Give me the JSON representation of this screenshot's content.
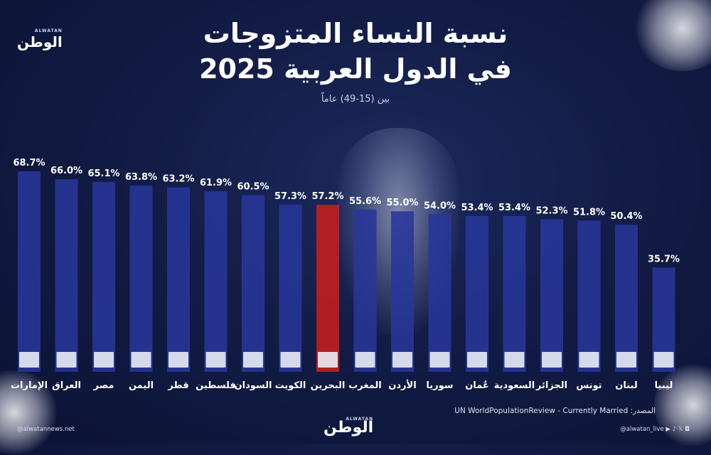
{
  "brand": {
    "name": "الوطن",
    "latin": "ALWATAN"
  },
  "header": {
    "title_line1": "نسبة النساء المتزوجات",
    "title_line2": "في الدول العربية 2025",
    "subtitle": "بين (15-49) عاماً"
  },
  "chart_data": {
    "type": "bar",
    "title": "نسبة النساء المتزوجات في الدول العربية 2025",
    "subtitle": "بين (15-49) عاماً",
    "ylabel": "",
    "xlabel": "",
    "ylim": [
      0,
      70
    ],
    "categories": [
      "الإمارات",
      "العراق",
      "مصر",
      "اليمن",
      "قطر",
      "فلسطين",
      "السودان",
      "الكويت",
      "البحرين",
      "المغرب",
      "الأردن",
      "سوريا",
      "عُمان",
      "السعودية",
      "الجزائر",
      "تونس",
      "لبنان",
      "ليبيا"
    ],
    "values": [
      68.7,
      66.0,
      65.1,
      63.8,
      63.2,
      61.9,
      60.5,
      57.3,
      57.2,
      55.6,
      55.0,
      54.0,
      53.4,
      53.4,
      52.3,
      51.8,
      50.4,
      35.7
    ],
    "value_labels": [
      "68.7%",
      "66.0%",
      "65.1%",
      "63.8%",
      "63.2%",
      "61.9%",
      "60.5%",
      "57.3%",
      "57.2%",
      "55.6%",
      "55.0%",
      "54.0%",
      "53.4%",
      "53.4%",
      "52.3%",
      "51.8%",
      "50.4%",
      "35.7%"
    ],
    "highlight_index": 8,
    "colors": {
      "bar": "#28379a",
      "highlight": "#c81e1e"
    }
  },
  "source": "المصدر: UN WorldPopulationReview - Currently Married",
  "footer": {
    "website": "@alwatannews.net",
    "social_handle": "@alwatan_live",
    "social_icons": "▶ ♪ 𝕏 ◘"
  }
}
